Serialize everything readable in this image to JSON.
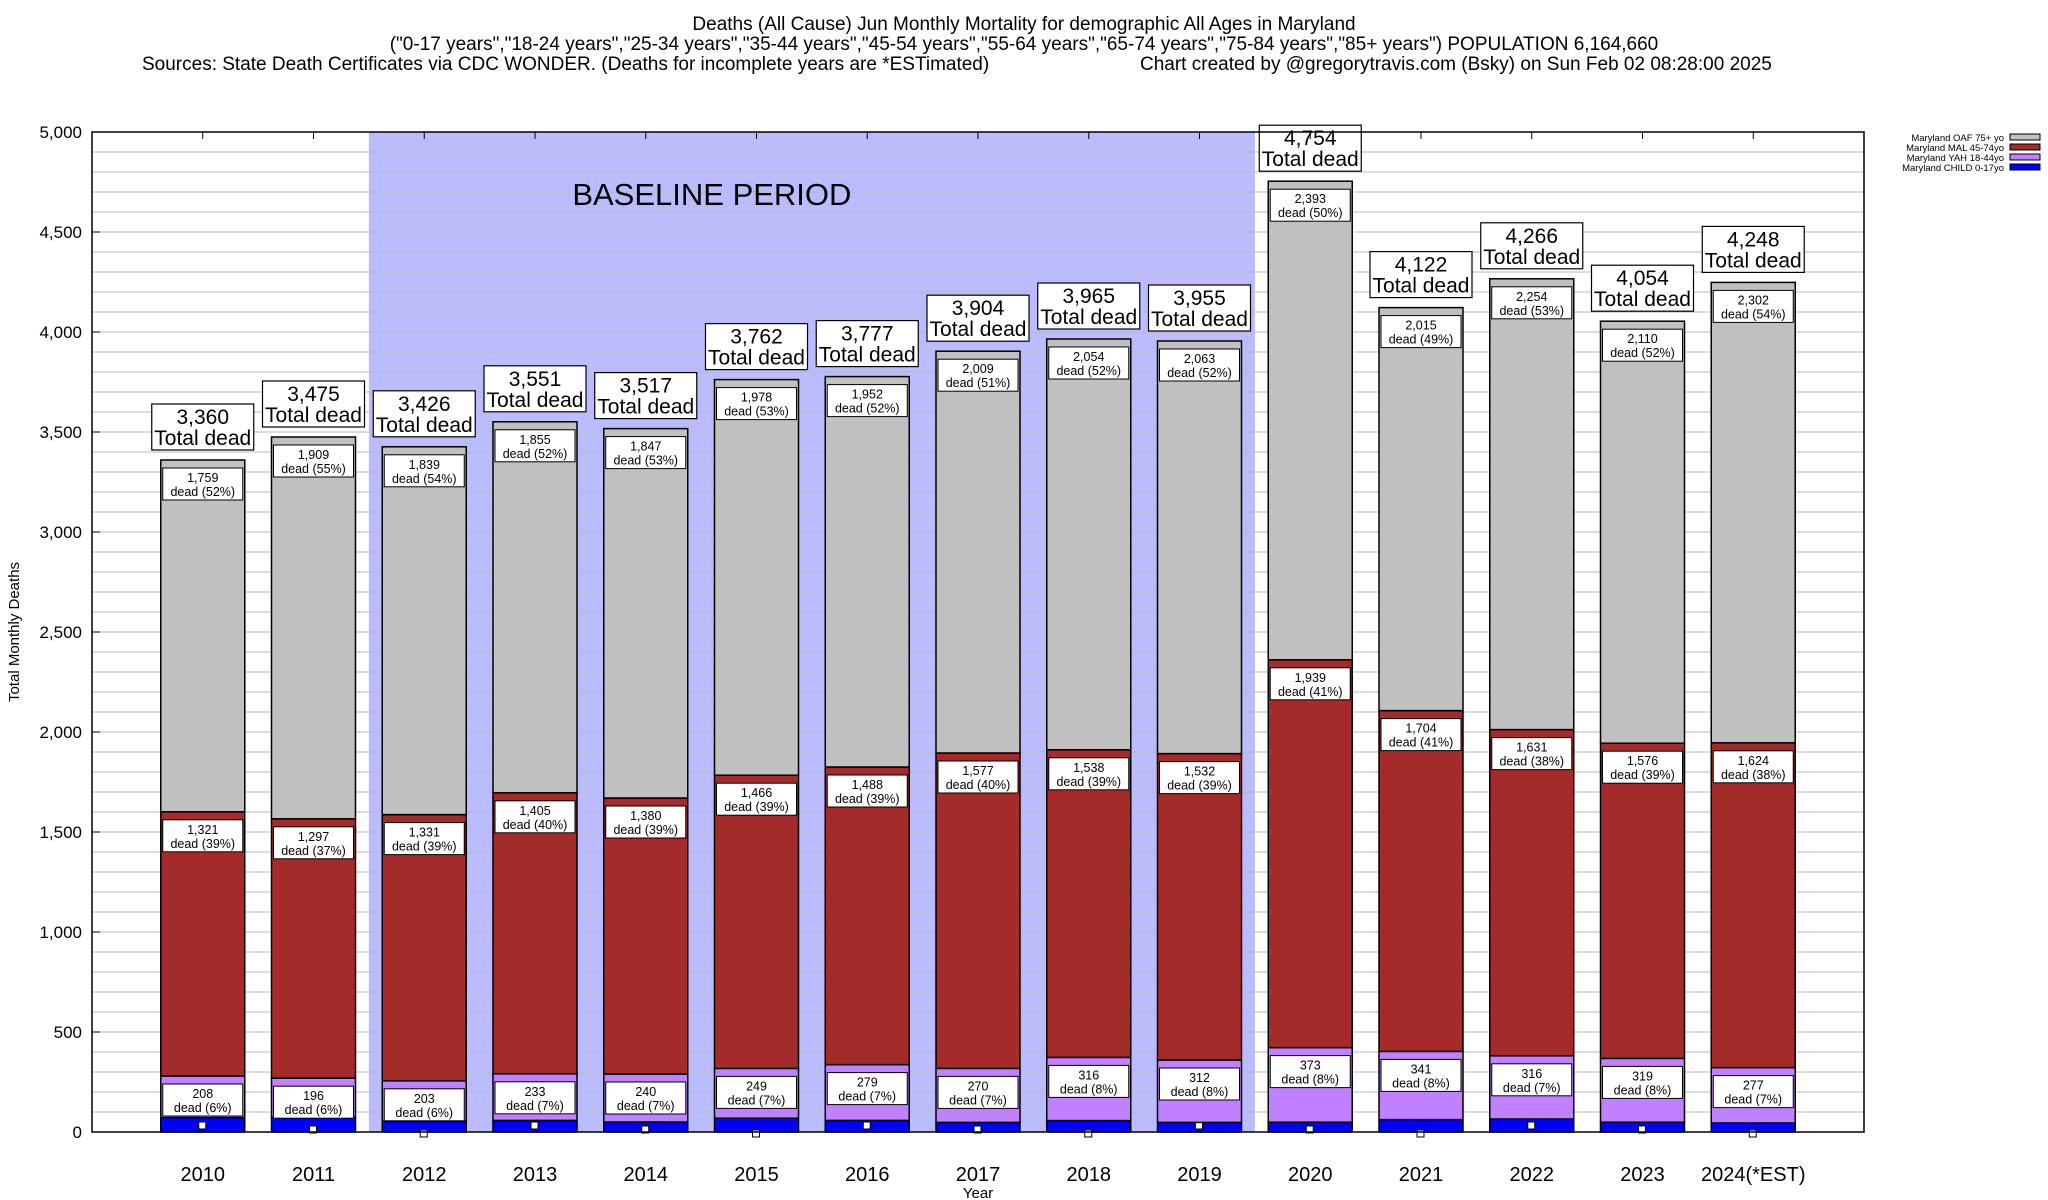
{
  "header": {
    "title_line1": "Deaths (All Cause) Jun Monthly Mortality for demographic All Ages in Maryland",
    "title_line2": "(\"0-17 years\",\"18-24 years\",\"25-34 years\",\"35-44 years\",\"45-54 years\",\"55-64 years\",\"65-74 years\",\"75-84 years\",\"85+ years\") POPULATION 6,164,660",
    "sources": "Sources: State Death Certificates via CDC WONDER. (Deaths for incomplete years are *ESTimated)",
    "credit": "Chart created by @gregorytravis.com (Bsky) on Sun Feb 02 08:28:00 2025"
  },
  "chart_data": {
    "type": "bar",
    "stacked": true,
    "xlabel": "Year",
    "ylabel": "Total Monthly Deaths",
    "ylim": [
      0,
      5000
    ],
    "yticks": [
      0,
      500,
      1000,
      1500,
      2000,
      2500,
      3000,
      3500,
      4000,
      4500,
      5000
    ],
    "grid": true,
    "legend_position": "top-right",
    "annotation": "BASELINE PERIOD",
    "baseline_range": [
      "2012",
      "2019"
    ],
    "total_label": "Total dead",
    "dead_word": "dead",
    "categories": [
      "2010",
      "2011",
      "2012",
      "2013",
      "2014",
      "2015",
      "2016",
      "2017",
      "2018",
      "2019",
      "2020",
      "2021",
      "2022",
      "2023",
      "2024(*EST)"
    ],
    "totals": [
      3360,
      3475,
      3426,
      3551,
      3517,
      3762,
      3777,
      3904,
      3965,
      3955,
      4754,
      4122,
      4266,
      4054,
      4248
    ],
    "series": [
      {
        "name": "Maryland CHILD 0-17yo",
        "color": "#0000ff",
        "values": [
          72,
          73,
          53,
          58,
          50,
          69,
          58,
          48,
          57,
          48,
          49,
          62,
          65,
          49,
          45
        ],
        "percents": null
      },
      {
        "name": "Maryland YAH 18-44yo",
        "color": "#c080ff",
        "values": [
          208,
          196,
          203,
          233,
          240,
          249,
          279,
          270,
          316,
          312,
          373,
          341,
          316,
          319,
          277
        ],
        "percents": [
          6,
          6,
          6,
          7,
          7,
          7,
          7,
          7,
          8,
          8,
          8,
          8,
          7,
          8,
          7
        ]
      },
      {
        "name": "Maryland MAL 45-74yo",
        "color": "#a52a2a",
        "values": [
          1321,
          1297,
          1331,
          1405,
          1380,
          1466,
          1488,
          1577,
          1538,
          1532,
          1939,
          1704,
          1631,
          1576,
          1624
        ],
        "percents": [
          39,
          37,
          39,
          40,
          39,
          39,
          39,
          40,
          39,
          39,
          41,
          41,
          38,
          39,
          38
        ]
      },
      {
        "name": "Maryland OAF 75+ yo",
        "color": "#c0c0c0",
        "values": [
          1759,
          1909,
          1839,
          1855,
          1847,
          1978,
          1952,
          2009,
          2054,
          2063,
          2393,
          2015,
          2254,
          2110,
          2302
        ],
        "percents": [
          52,
          55,
          54,
          52,
          53,
          53,
          52,
          51,
          52,
          52,
          50,
          49,
          53,
          52,
          54
        ]
      }
    ],
    "baseline_color": "#bbbbff"
  }
}
